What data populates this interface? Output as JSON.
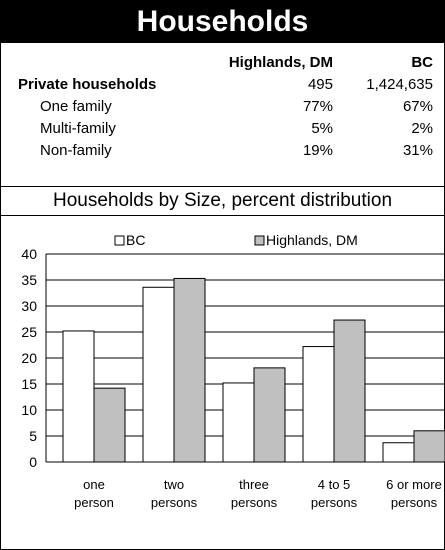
{
  "header": {
    "title": "Households"
  },
  "table": {
    "columns": [
      "Highlands, DM",
      "BC"
    ],
    "rows": [
      {
        "label": "Private households",
        "highlands": "495",
        "bc": "1,424,635"
      },
      {
        "label": "One family",
        "highlands": "77%",
        "bc": "67%"
      },
      {
        "label": "Multi-family",
        "highlands": "5%",
        "bc": "2%"
      },
      {
        "label": "Non-family",
        "highlands": "19%",
        "bc": "31%"
      }
    ]
  },
  "chart_data": {
    "type": "bar",
    "title": "Households by Size, percent distribution",
    "categories": [
      [
        "one",
        "person"
      ],
      [
        "two",
        "persons"
      ],
      [
        "three",
        "persons"
      ],
      [
        "4 to 5",
        "persons"
      ],
      [
        "6 or more",
        "persons"
      ]
    ],
    "series": [
      {
        "name": "BC",
        "values": [
          25.2,
          33.6,
          15.2,
          22.2,
          3.7
        ],
        "color": "#ffffff"
      },
      {
        "name": "Highlands, DM",
        "values": [
          14.2,
          35.3,
          18.1,
          27.3,
          6.0
        ],
        "color": "#c0c0c0"
      }
    ],
    "ylim": [
      0,
      40
    ],
    "yticks": [
      0,
      5,
      10,
      15,
      20,
      25,
      30,
      35,
      40
    ],
    "grid": true,
    "legend": "top"
  }
}
